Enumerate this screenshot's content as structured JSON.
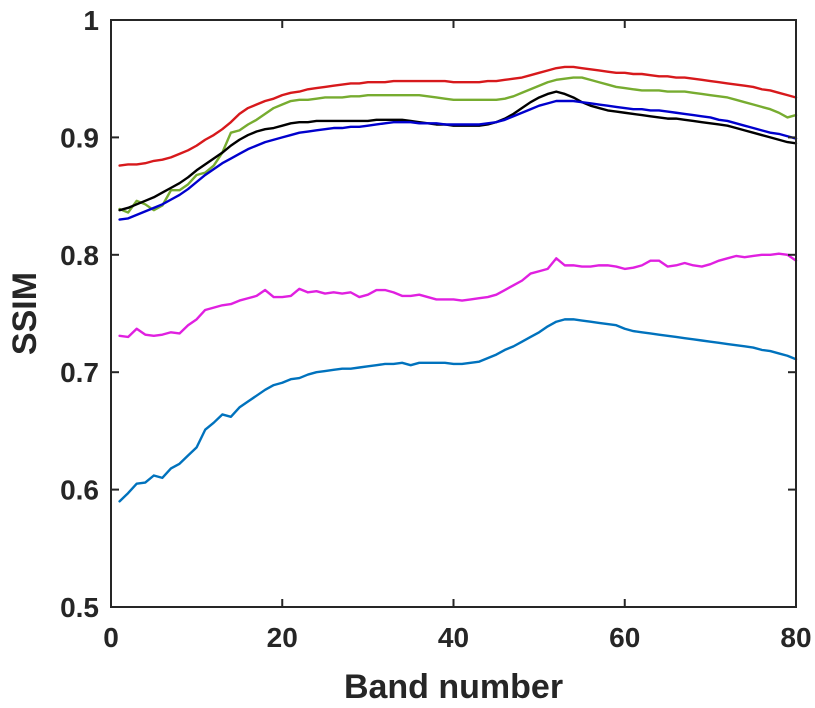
{
  "chart_data": {
    "type": "line",
    "title": "",
    "xlabel": "Band number",
    "ylabel": "SSIM",
    "xlim": [
      0,
      80
    ],
    "ylim": [
      0.5,
      1
    ],
    "xticks": [
      0,
      20,
      40,
      60,
      80
    ],
    "xtick_labels": [
      "0",
      "20",
      "40",
      "60",
      "80"
    ],
    "yticks": [
      0.5,
      0.6,
      0.7,
      0.8,
      0.9,
      1
    ],
    "ytick_labels": [
      "0.5",
      "0.6",
      "0.7",
      "0.8",
      "0.9",
      "1"
    ],
    "grid": false,
    "legend": "none",
    "x": [
      1,
      2,
      3,
      4,
      5,
      6,
      7,
      8,
      9,
      10,
      11,
      12,
      13,
      14,
      15,
      16,
      17,
      18,
      19,
      20,
      21,
      22,
      23,
      24,
      25,
      26,
      27,
      28,
      29,
      30,
      31,
      32,
      33,
      34,
      35,
      36,
      37,
      38,
      39,
      40,
      41,
      42,
      43,
      44,
      45,
      46,
      47,
      48,
      49,
      50,
      51,
      52,
      53,
      54,
      55,
      56,
      57,
      58,
      59,
      60,
      61,
      62,
      63,
      64,
      65,
      66,
      67,
      68,
      69,
      70,
      71,
      72,
      73,
      74,
      75,
      76,
      77,
      78,
      79,
      80
    ],
    "series": [
      {
        "color": "#d7191c",
        "values": [
          0.876,
          0.877,
          0.877,
          0.878,
          0.88,
          0.881,
          0.883,
          0.886,
          0.889,
          0.893,
          0.898,
          0.902,
          0.907,
          0.913,
          0.92,
          0.925,
          0.928,
          0.931,
          0.933,
          0.936,
          0.938,
          0.939,
          0.941,
          0.942,
          0.943,
          0.944,
          0.945,
          0.946,
          0.946,
          0.947,
          0.947,
          0.947,
          0.948,
          0.948,
          0.948,
          0.948,
          0.948,
          0.948,
          0.948,
          0.947,
          0.947,
          0.947,
          0.947,
          0.948,
          0.948,
          0.949,
          0.95,
          0.951,
          0.953,
          0.955,
          0.957,
          0.959,
          0.96,
          0.96,
          0.959,
          0.958,
          0.957,
          0.956,
          0.955,
          0.955,
          0.954,
          0.954,
          0.953,
          0.952,
          0.952,
          0.951,
          0.951,
          0.95,
          0.949,
          0.948,
          0.947,
          0.946,
          0.945,
          0.944,
          0.943,
          0.941,
          0.94,
          0.938,
          0.936,
          0.934
        ]
      },
      {
        "color": "#77ac30",
        "values": [
          0.839,
          0.836,
          0.846,
          0.843,
          0.838,
          0.842,
          0.855,
          0.855,
          0.86,
          0.868,
          0.87,
          0.876,
          0.887,
          0.904,
          0.906,
          0.911,
          0.915,
          0.92,
          0.925,
          0.928,
          0.931,
          0.932,
          0.932,
          0.933,
          0.934,
          0.934,
          0.934,
          0.935,
          0.935,
          0.936,
          0.936,
          0.936,
          0.936,
          0.936,
          0.936,
          0.936,
          0.935,
          0.934,
          0.933,
          0.932,
          0.932,
          0.932,
          0.932,
          0.932,
          0.932,
          0.933,
          0.935,
          0.938,
          0.941,
          0.944,
          0.947,
          0.949,
          0.95,
          0.951,
          0.951,
          0.949,
          0.947,
          0.945,
          0.943,
          0.942,
          0.941,
          0.94,
          0.94,
          0.94,
          0.939,
          0.939,
          0.939,
          0.938,
          0.937,
          0.936,
          0.935,
          0.934,
          0.932,
          0.93,
          0.928,
          0.926,
          0.924,
          0.921,
          0.917,
          0.919
        ]
      },
      {
        "color": "#000000",
        "values": [
          0.838,
          0.84,
          0.843,
          0.846,
          0.849,
          0.853,
          0.857,
          0.861,
          0.866,
          0.872,
          0.877,
          0.882,
          0.887,
          0.893,
          0.898,
          0.902,
          0.905,
          0.907,
          0.908,
          0.91,
          0.912,
          0.913,
          0.913,
          0.914,
          0.914,
          0.914,
          0.914,
          0.914,
          0.914,
          0.914,
          0.915,
          0.915,
          0.915,
          0.915,
          0.914,
          0.913,
          0.912,
          0.911,
          0.911,
          0.91,
          0.91,
          0.91,
          0.91,
          0.911,
          0.913,
          0.916,
          0.92,
          0.925,
          0.93,
          0.934,
          0.937,
          0.939,
          0.937,
          0.934,
          0.93,
          0.927,
          0.925,
          0.923,
          0.922,
          0.921,
          0.92,
          0.919,
          0.918,
          0.917,
          0.916,
          0.916,
          0.915,
          0.914,
          0.913,
          0.912,
          0.911,
          0.91,
          0.908,
          0.906,
          0.904,
          0.902,
          0.9,
          0.898,
          0.896,
          0.895
        ]
      },
      {
        "color": "#0000cd",
        "values": [
          0.83,
          0.831,
          0.834,
          0.837,
          0.84,
          0.843,
          0.847,
          0.851,
          0.856,
          0.862,
          0.868,
          0.873,
          0.878,
          0.882,
          0.886,
          0.89,
          0.893,
          0.896,
          0.898,
          0.9,
          0.902,
          0.904,
          0.905,
          0.906,
          0.907,
          0.908,
          0.908,
          0.909,
          0.909,
          0.91,
          0.911,
          0.912,
          0.913,
          0.913,
          0.913,
          0.912,
          0.912,
          0.912,
          0.911,
          0.911,
          0.911,
          0.911,
          0.911,
          0.912,
          0.913,
          0.915,
          0.918,
          0.921,
          0.924,
          0.927,
          0.929,
          0.931,
          0.931,
          0.931,
          0.93,
          0.929,
          0.928,
          0.927,
          0.926,
          0.925,
          0.924,
          0.924,
          0.923,
          0.923,
          0.922,
          0.921,
          0.92,
          0.919,
          0.918,
          0.917,
          0.915,
          0.914,
          0.912,
          0.91,
          0.908,
          0.906,
          0.904,
          0.903,
          0.901,
          0.899
        ]
      },
      {
        "color": "#e020e0",
        "values": [
          0.731,
          0.73,
          0.737,
          0.732,
          0.731,
          0.732,
          0.734,
          0.733,
          0.74,
          0.745,
          0.753,
          0.755,
          0.757,
          0.758,
          0.761,
          0.763,
          0.765,
          0.77,
          0.764,
          0.764,
          0.765,
          0.771,
          0.768,
          0.769,
          0.767,
          0.768,
          0.767,
          0.768,
          0.764,
          0.766,
          0.77,
          0.77,
          0.768,
          0.765,
          0.765,
          0.766,
          0.764,
          0.762,
          0.762,
          0.762,
          0.761,
          0.762,
          0.763,
          0.764,
          0.766,
          0.77,
          0.774,
          0.778,
          0.784,
          0.786,
          0.788,
          0.797,
          0.791,
          0.791,
          0.79,
          0.79,
          0.791,
          0.791,
          0.79,
          0.788,
          0.789,
          0.791,
          0.795,
          0.795,
          0.79,
          0.791,
          0.793,
          0.791,
          0.79,
          0.792,
          0.795,
          0.797,
          0.799,
          0.798,
          0.799,
          0.8,
          0.8,
          0.801,
          0.8,
          0.795
        ]
      },
      {
        "color": "#0072bd",
        "values": [
          0.59,
          0.597,
          0.605,
          0.606,
          0.612,
          0.61,
          0.618,
          0.622,
          0.629,
          0.636,
          0.651,
          0.657,
          0.664,
          0.662,
          0.67,
          0.675,
          0.68,
          0.685,
          0.689,
          0.691,
          0.694,
          0.695,
          0.698,
          0.7,
          0.701,
          0.702,
          0.703,
          0.703,
          0.704,
          0.705,
          0.706,
          0.707,
          0.707,
          0.708,
          0.706,
          0.708,
          0.708,
          0.708,
          0.708,
          0.707,
          0.707,
          0.708,
          0.709,
          0.712,
          0.715,
          0.719,
          0.722,
          0.726,
          0.73,
          0.734,
          0.739,
          0.743,
          0.745,
          0.745,
          0.744,
          0.743,
          0.742,
          0.741,
          0.74,
          0.737,
          0.735,
          0.734,
          0.733,
          0.732,
          0.731,
          0.73,
          0.729,
          0.728,
          0.727,
          0.726,
          0.725,
          0.724,
          0.723,
          0.722,
          0.721,
          0.719,
          0.718,
          0.716,
          0.714,
          0.711
        ]
      }
    ]
  }
}
